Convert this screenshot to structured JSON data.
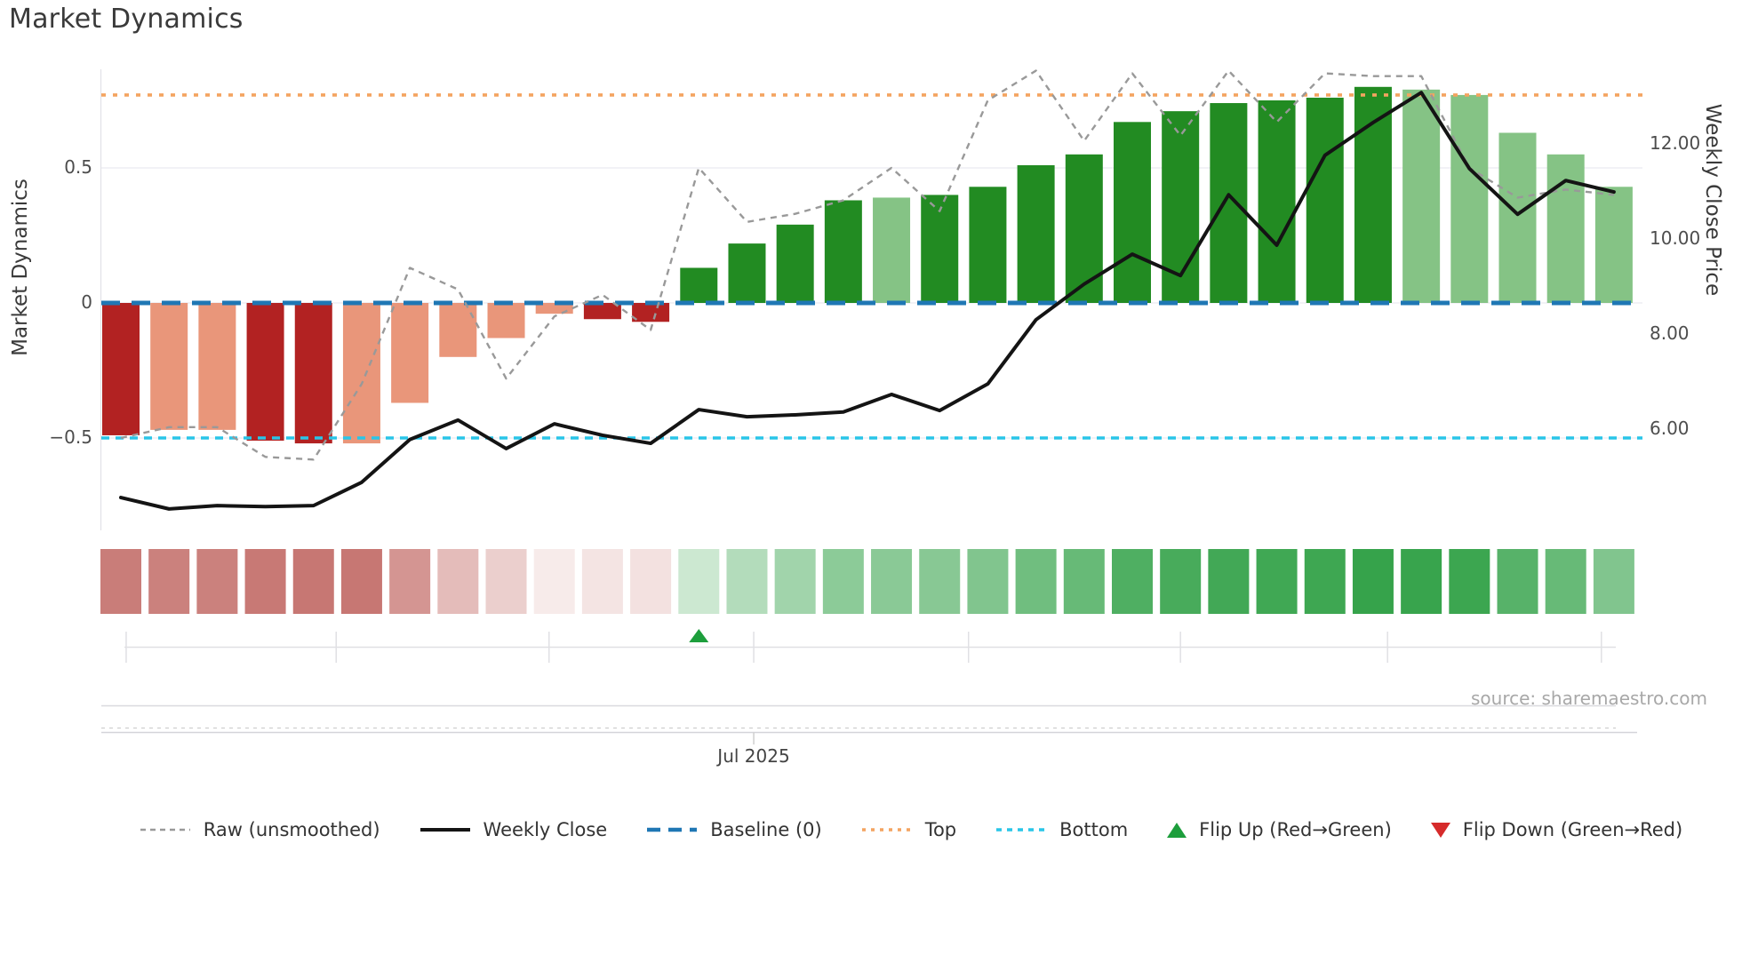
{
  "title": "Market Dynamics",
  "source_note": "source: sharemaestro.com",
  "axes": {
    "left": {
      "title": "Market Dynamics",
      "ticks": [
        {
          "label": "0.5",
          "value": 0.5
        },
        {
          "label": "0",
          "value": 0
        },
        {
          "label": "−0.5",
          "value": -0.5
        }
      ]
    },
    "right": {
      "title": "Weekly Close Price",
      "ticks": [
        {
          "label": "12.00",
          "value": 12
        },
        {
          "label": "10.00",
          "value": 10
        },
        {
          "label": "8.00",
          "value": 8
        },
        {
          "label": "6.00",
          "value": 6
        }
      ]
    },
    "x": {
      "month_label": "Jul 2025",
      "month_label_tick_index": 3,
      "month_tick_positions_weeks": [
        0.11,
        4.47,
        8.89,
        13.14,
        17.6,
        22.0,
        26.3,
        30.74
      ]
    }
  },
  "legend": [
    {
      "label": "Raw (unsmoothed)",
      "swatch": "dash-gray"
    },
    {
      "label": "Weekly Close",
      "swatch": "line-black"
    },
    {
      "label": "Baseline (0)",
      "swatch": "dash-blue"
    },
    {
      "label": "Top",
      "swatch": "dot-orange"
    },
    {
      "label": "Bottom",
      "swatch": "dot-cyan"
    },
    {
      "label": "Flip Up (Red→Green)",
      "swatch": "tri-up"
    },
    {
      "label": "Flip Down (Green→Red)",
      "swatch": "tri-down"
    }
  ],
  "colors": {
    "dark_red": "#b22222",
    "salmon": "#e9967a",
    "green": "#228b22",
    "light_green": "#85c385",
    "baseline": "#1f77b4",
    "top_line": "#f4a460",
    "bottom_line": "#29c5e8",
    "raw_line": "#999999",
    "close_line": "#141414",
    "flip_up": "#1d9e3c",
    "flip_down": "#d62b2b",
    "grid": "#ebebf0",
    "strip_red_max": "#ae3a34",
    "strip_green_max": "#2d9f43"
  },
  "chart_data": {
    "type": "bar",
    "subtype": "bar + line combo with heat strip",
    "x_unit": "week",
    "n_points": 32,
    "title": "Market Dynamics",
    "ylabel_left": "Market Dynamics",
    "ylabel_right": "Weekly Close Price",
    "ylim_left": [
      -0.9,
      0.95
    ],
    "yticks_right": [
      6,
      8,
      10,
      12
    ],
    "bars": {
      "name": "Market Dynamics (smoothed)",
      "values": [
        -0.49,
        -0.47,
        -0.47,
        -0.51,
        -0.52,
        -0.52,
        -0.37,
        -0.2,
        -0.13,
        -0.04,
        -0.06,
        -0.07,
        0.13,
        0.22,
        0.29,
        0.38,
        0.39,
        0.4,
        0.43,
        0.51,
        0.55,
        0.67,
        0.71,
        0.74,
        0.75,
        0.76,
        0.8,
        0.79,
        0.77,
        0.63,
        0.55,
        0.43
      ],
      "color_keys": [
        "dark_red",
        "salmon",
        "salmon",
        "dark_red",
        "dark_red",
        "salmon",
        "salmon",
        "salmon",
        "salmon",
        "salmon",
        "dark_red",
        "dark_red",
        "green",
        "green",
        "green",
        "green",
        "light_green",
        "green",
        "green",
        "green",
        "green",
        "green",
        "green",
        "green",
        "green",
        "green",
        "green",
        "light_green",
        "light_green",
        "light_green",
        "light_green",
        "light_green"
      ]
    },
    "raw_line": {
      "name": "Raw (unsmoothed)",
      "values": [
        -0.5,
        -0.46,
        -0.46,
        -0.57,
        -0.58,
        -0.3,
        0.13,
        0.05,
        -0.28,
        -0.05,
        0.03,
        -0.1,
        0.5,
        0.3,
        0.33,
        0.38,
        0.5,
        0.34,
        0.75,
        0.86,
        0.6,
        0.85,
        0.62,
        0.86,
        0.67,
        0.85,
        0.84,
        0.84,
        0.5,
        0.39,
        0.42,
        0.4
      ]
    },
    "close_line": {
      "name": "Weekly Close",
      "axis": "right",
      "values": [
        4.56,
        4.32,
        4.39,
        4.37,
        4.39,
        4.88,
        5.78,
        6.19,
        5.59,
        6.11,
        5.87,
        5.7,
        6.41,
        6.26,
        6.3,
        6.36,
        6.73,
        6.39,
        6.95,
        8.3,
        9.05,
        9.68,
        9.23,
        10.93,
        9.87,
        11.76,
        12.45,
        13.08,
        11.48,
        10.52,
        11.23,
        10.99
      ]
    },
    "reference_lines": [
      {
        "name": "Baseline (0)",
        "value": 0
      },
      {
        "name": "Top",
        "value": 0.77
      },
      {
        "name": "Bottom",
        "value": -0.5
      }
    ],
    "flip_markers": [
      {
        "type": "up",
        "name": "Flip Up (Red→Green)",
        "week_index": 12
      }
    ],
    "heat_strip": {
      "note": "one cell per week, color intensity = |bar value|, red for negative, green for positive"
    },
    "legend_position": "bottom",
    "grid": "horizontal only"
  }
}
